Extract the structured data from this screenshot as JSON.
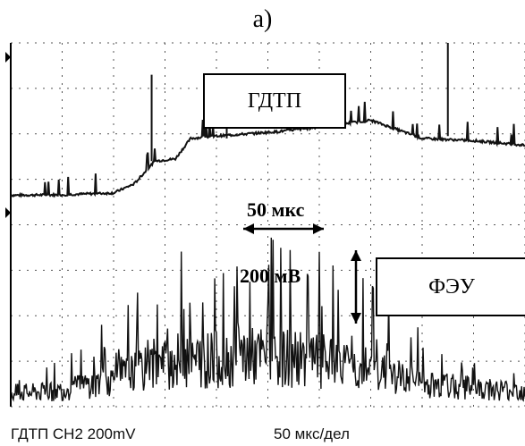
{
  "figure_label": "а)",
  "chart_data": {
    "type": "line",
    "series": [
      {
        "name": "ГДТП",
        "x": [
          0,
          50,
          100,
          120,
          140,
          160,
          175,
          200,
          260,
          300,
          350,
          400,
          450,
          500
        ],
        "y": [
          4.65,
          4.66,
          4.7,
          4.9,
          5.4,
          5.45,
          5.9,
          5.95,
          6.05,
          6.15,
          6.3,
          5.9,
          5.85,
          5.75
        ]
      },
      {
        "name": "ФЭУ",
        "x": [
          0,
          40,
          80,
          100,
          130,
          160,
          200,
          250,
          300,
          350,
          400,
          450,
          500
        ],
        "y": [
          0.3,
          0.32,
          0.5,
          0.6,
          0.8,
          1.0,
          1.05,
          1.1,
          1.0,
          0.8,
          0.5,
          0.4,
          0.35
        ]
      }
    ],
    "annotations": {
      "time_scale": "50 мкс",
      "voltage_scale": "200 мВ"
    },
    "grid": true,
    "gridlines": {
      "vertical": 10,
      "horizontal": 8
    }
  },
  "footer": {
    "channel": "ГДТП  CH2 200mV",
    "timebase": "50 мкс/дел"
  },
  "colors": {
    "trace": "#111111",
    "grid": "#555555",
    "background": "#ffffff"
  }
}
